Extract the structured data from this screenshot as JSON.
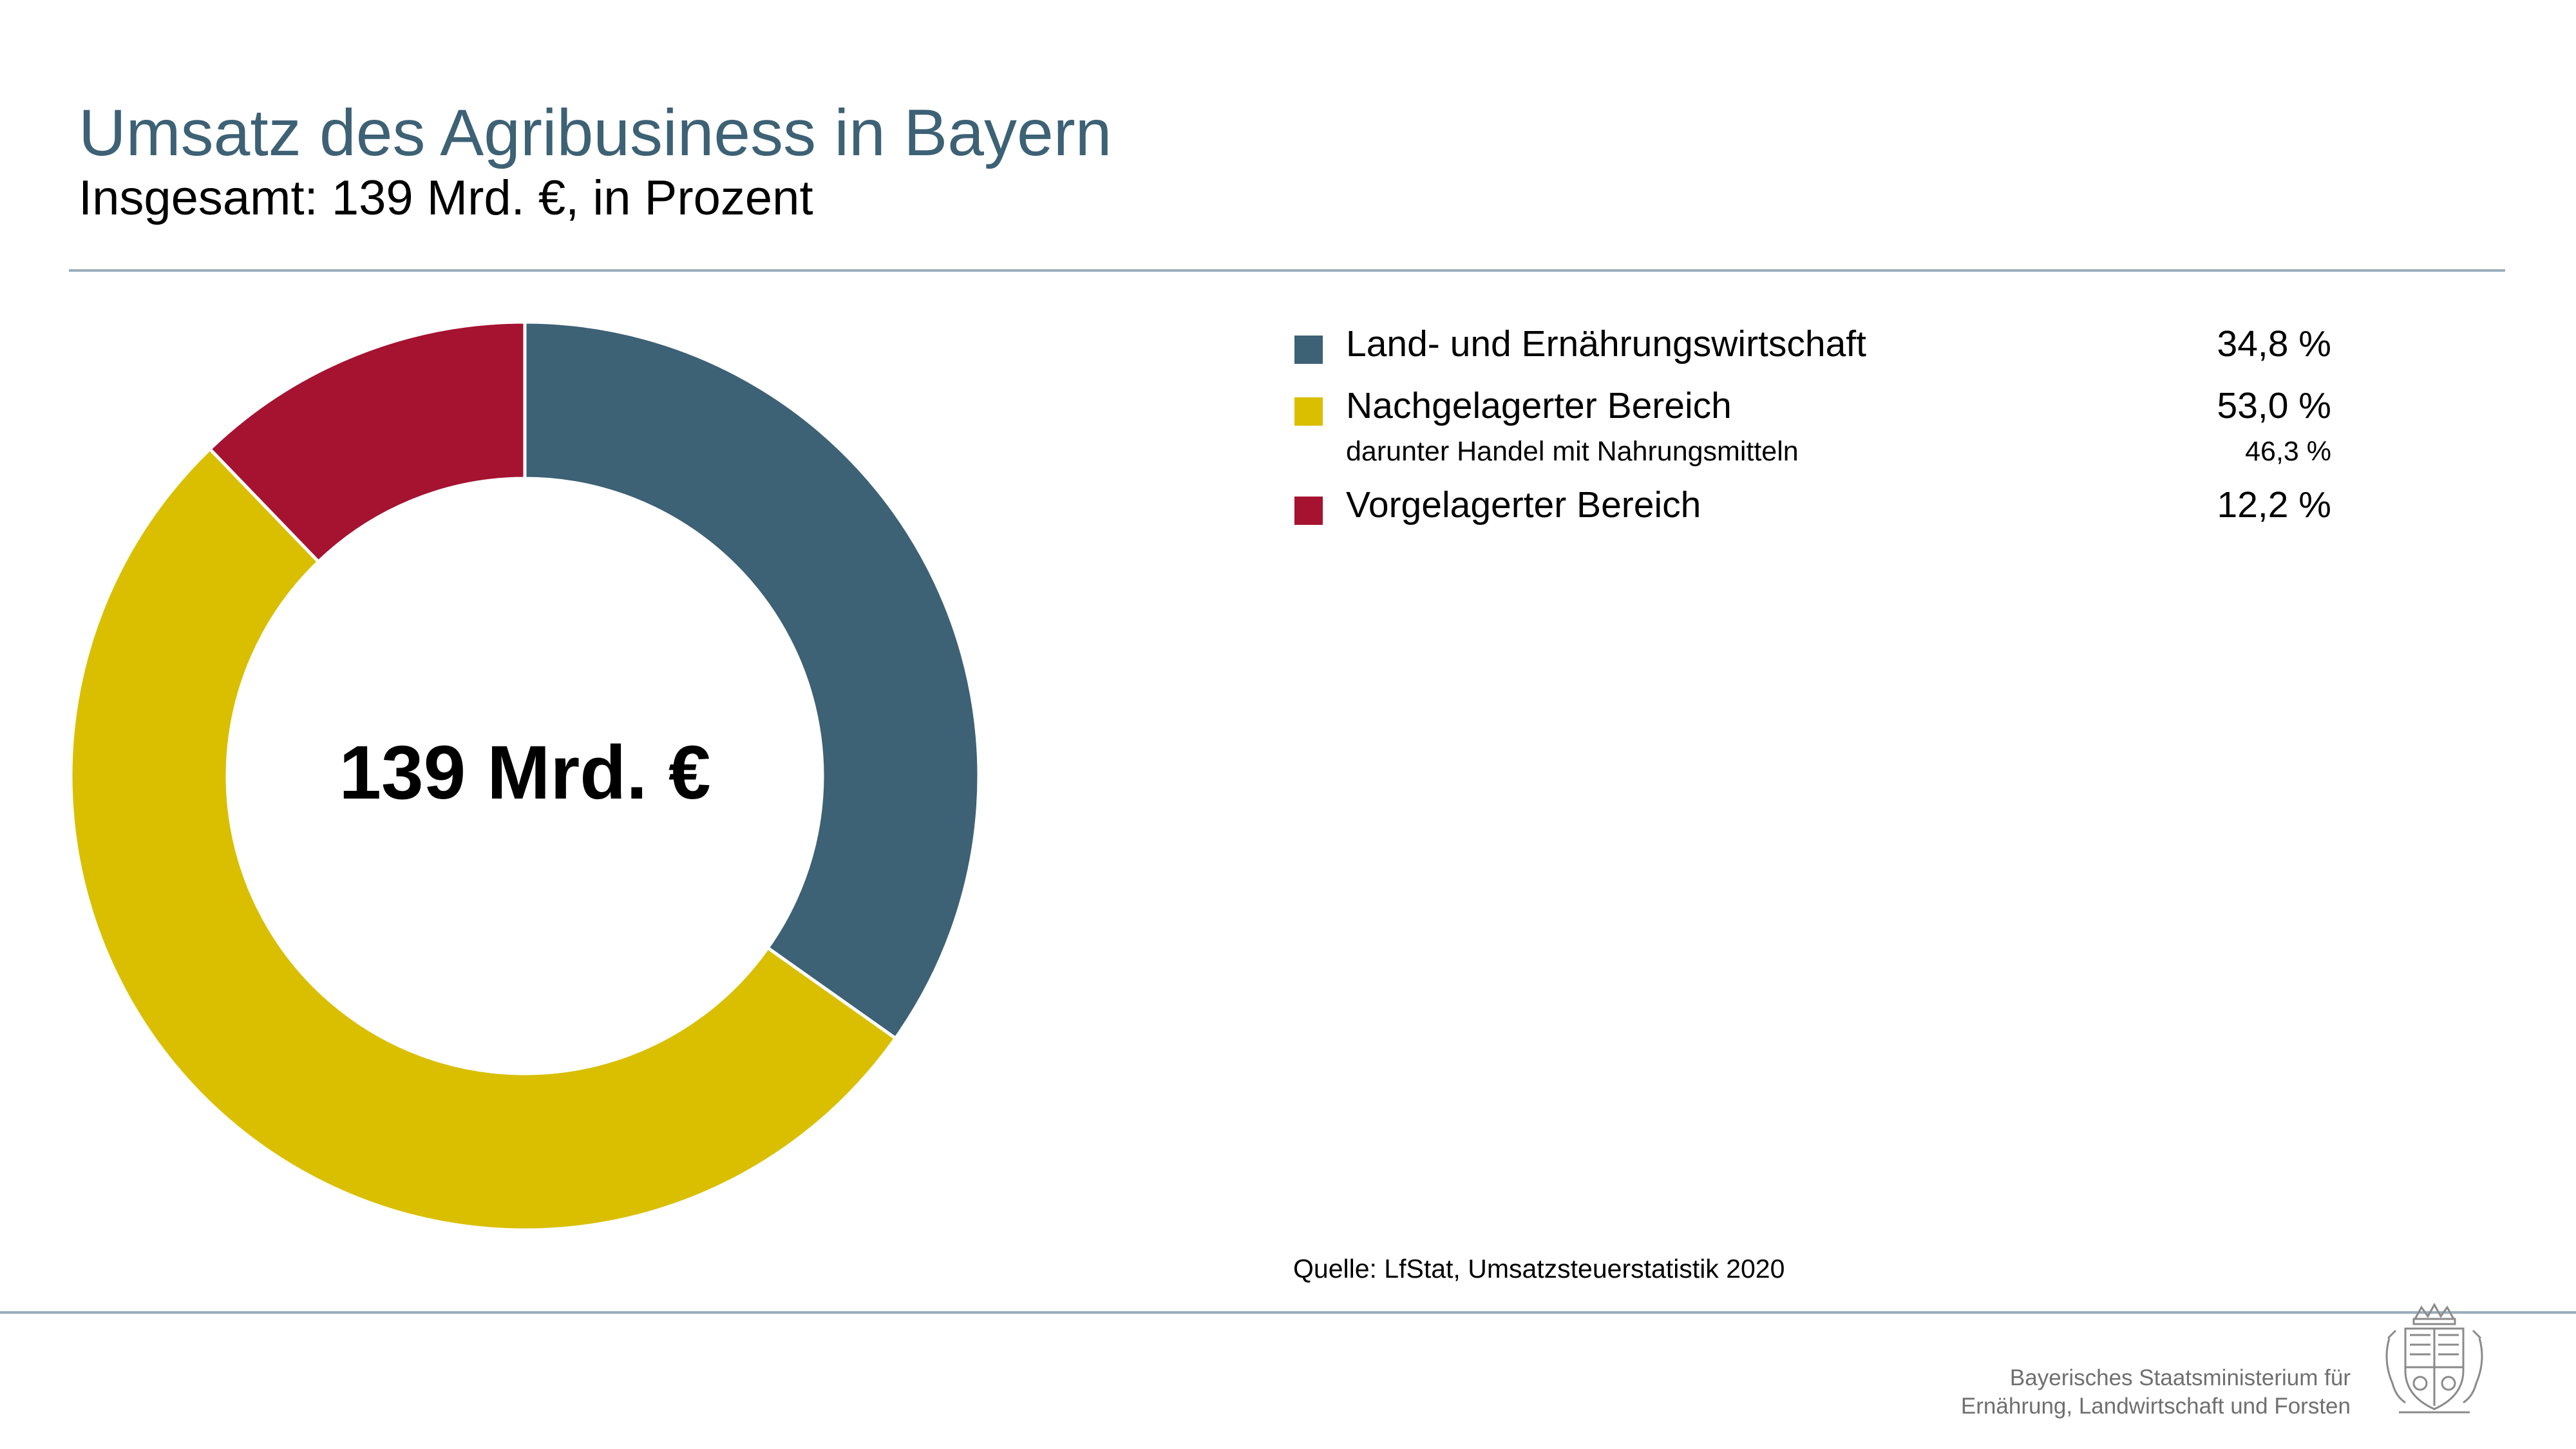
{
  "header": {
    "title": "Umsatz des Agribusiness in Bayern",
    "subtitle": "Insgesamt: 139 Mrd. €, in Prozent"
  },
  "chart_data": {
    "type": "pie",
    "donut": true,
    "center_label": "139 Mrd. €",
    "categories": [
      "Land- und Ernährungswirtschaft",
      "Nachgelagerter Bereich",
      "Vorgelagerter Bereich"
    ],
    "values": [
      34.8,
      53.0,
      12.2
    ],
    "value_labels": [
      "34,8 %",
      "53,0 %",
      "12,2 %"
    ],
    "colors": [
      "#3d6175",
      "#d9bf00",
      "#a51331"
    ],
    "sub_entry": {
      "label": "darunter Handel mit Nahrungsmitteln",
      "value": 46.3,
      "value_label": "46,3 %"
    },
    "legend_position": "right"
  },
  "source": "Quelle: LfStat, Umsatzsteuerstatistik 2020",
  "footer": {
    "ministry_line1": "Bayerisches Staatsministerium für",
    "ministry_line2": "Ernährung, Landwirtschaft und Forsten",
    "logo_icon": "bavarian-coat-of-arms-icon"
  },
  "colors": {
    "title": "#3d6175",
    "rule": "#9aaebb"
  }
}
